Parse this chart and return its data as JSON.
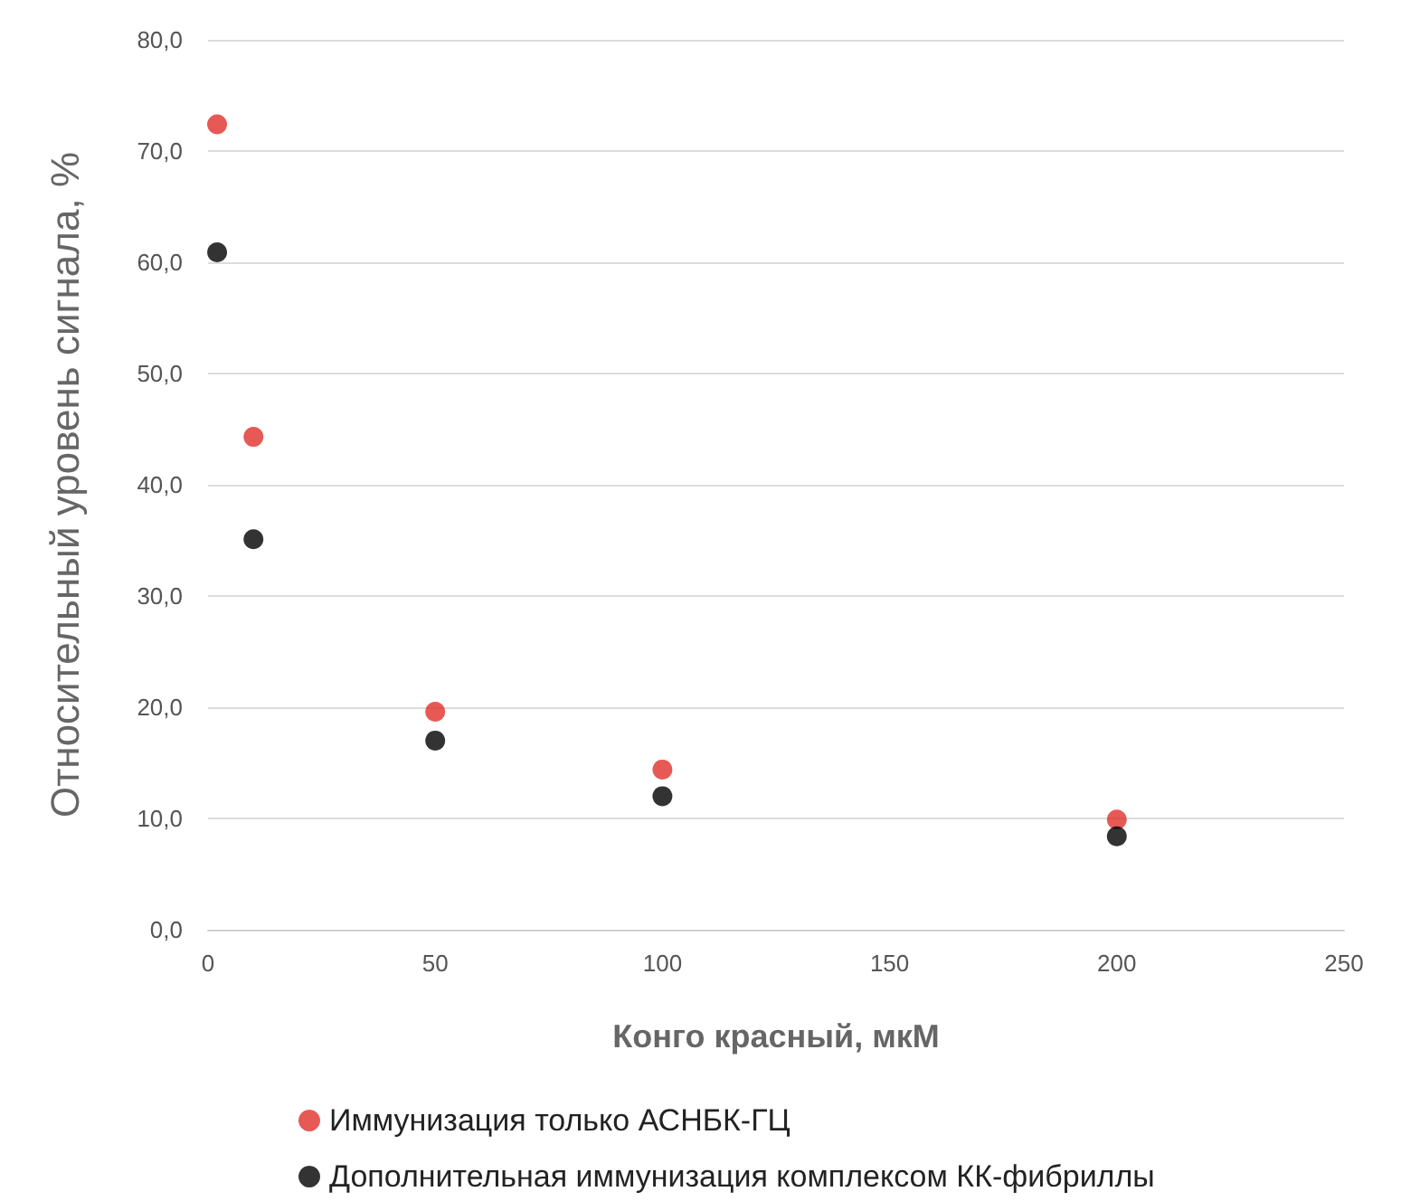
{
  "chart_data": {
    "type": "scatter",
    "xlabel": "Конго красный, мкМ",
    "ylabel": "Относительный уровень сигнала, %",
    "x": [
      2,
      10,
      50,
      100,
      200
    ],
    "series": [
      {
        "name": "Иммунизация только АСНБК-ГЦ",
        "color": "#e0302a",
        "values": [
          72.4,
          44.3,
          19.6,
          14.4,
          9.9
        ]
      },
      {
        "name": "Дополнительная иммунизация комплексом КК-фибриллы",
        "color": "#000000",
        "values": [
          60.9,
          35.1,
          17.0,
          12.0,
          8.4
        ]
      }
    ],
    "xlim": [
      0,
      250
    ],
    "xticks": [
      0,
      50,
      100,
      150,
      200,
      250
    ],
    "ylim": [
      0,
      80
    ],
    "yticks": [
      {
        "value": 0,
        "label": "0,0"
      },
      {
        "value": 10,
        "label": "10,0"
      },
      {
        "value": 20,
        "label": "20,0"
      },
      {
        "value": 30,
        "label": "30,0"
      },
      {
        "value": 40,
        "label": "40,0"
      },
      {
        "value": 50,
        "label": "50,0"
      },
      {
        "value": 60,
        "label": "60,0"
      },
      {
        "value": 70,
        "label": "70,0"
      },
      {
        "value": 80,
        "label": "80,0"
      }
    ],
    "grid": "y",
    "legend": "bottom",
    "marker": "circle"
  }
}
